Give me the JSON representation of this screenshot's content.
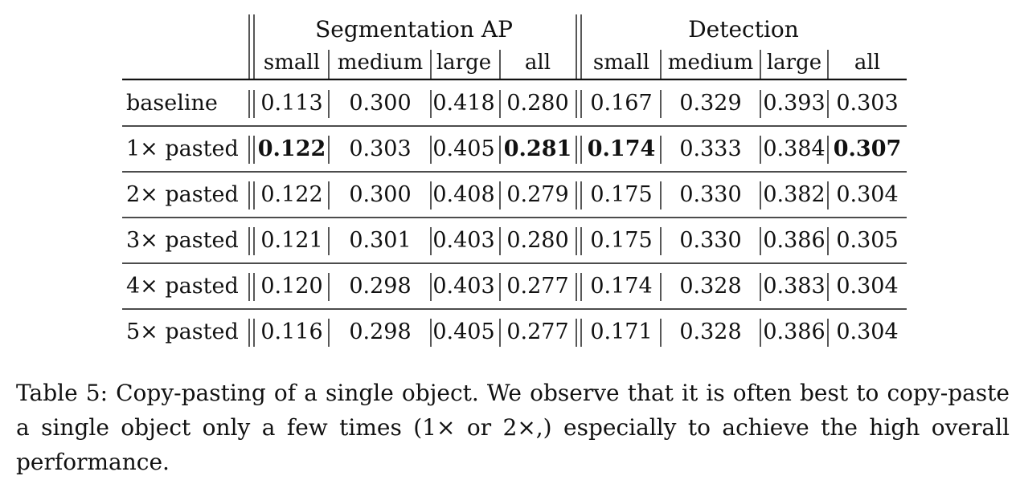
{
  "table": {
    "groups": [
      {
        "label": "Segmentation AP",
        "columns": [
          "small",
          "medium",
          "large",
          "all"
        ]
      },
      {
        "label": "Detection",
        "columns": [
          "small",
          "medium",
          "large",
          "all"
        ]
      }
    ],
    "rows": [
      {
        "label": "baseline",
        "segmentation": [
          "0.113",
          "0.300",
          "0.418",
          "0.280"
        ],
        "detection": [
          "0.167",
          "0.329",
          "0.393",
          "0.303"
        ],
        "bold_segmentation": [
          false,
          false,
          false,
          false
        ],
        "bold_detection": [
          false,
          false,
          false,
          false
        ]
      },
      {
        "label": "1× pasted",
        "segmentation": [
          "0.122",
          "0.303",
          "0.405",
          "0.281"
        ],
        "detection": [
          "0.174",
          "0.333",
          "0.384",
          "0.307"
        ],
        "bold_segmentation": [
          true,
          false,
          false,
          true
        ],
        "bold_detection": [
          true,
          false,
          false,
          true
        ]
      },
      {
        "label": "2× pasted",
        "segmentation": [
          "0.122",
          "0.300",
          "0.408",
          "0.279"
        ],
        "detection": [
          "0.175",
          "0.330",
          "0.382",
          "0.304"
        ],
        "bold_segmentation": [
          false,
          false,
          false,
          false
        ],
        "bold_detection": [
          false,
          false,
          false,
          false
        ]
      },
      {
        "label": "3× pasted",
        "segmentation": [
          "0.121",
          "0.301",
          "0.403",
          "0.280"
        ],
        "detection": [
          "0.175",
          "0.330",
          "0.386",
          "0.305"
        ],
        "bold_segmentation": [
          false,
          false,
          false,
          false
        ],
        "bold_detection": [
          false,
          false,
          false,
          false
        ]
      },
      {
        "label": "4× pasted",
        "segmentation": [
          "0.120",
          "0.298",
          "0.403",
          "0.277"
        ],
        "detection": [
          "0.174",
          "0.328",
          "0.383",
          "0.304"
        ],
        "bold_segmentation": [
          false,
          false,
          false,
          false
        ],
        "bold_detection": [
          false,
          false,
          false,
          false
        ]
      },
      {
        "label": "5× pasted",
        "segmentation": [
          "0.116",
          "0.298",
          "0.405",
          "0.277"
        ],
        "detection": [
          "0.171",
          "0.328",
          "0.386",
          "0.304"
        ],
        "bold_segmentation": [
          false,
          false,
          false,
          false
        ],
        "bold_detection": [
          false,
          false,
          false,
          false
        ]
      }
    ]
  },
  "caption": {
    "text": "Table 5: Copy-pasting of a single object. We observe that it is often best to copy-paste a single object only a few times (1× or 2×,) especially to achieve the high overall performance."
  }
}
